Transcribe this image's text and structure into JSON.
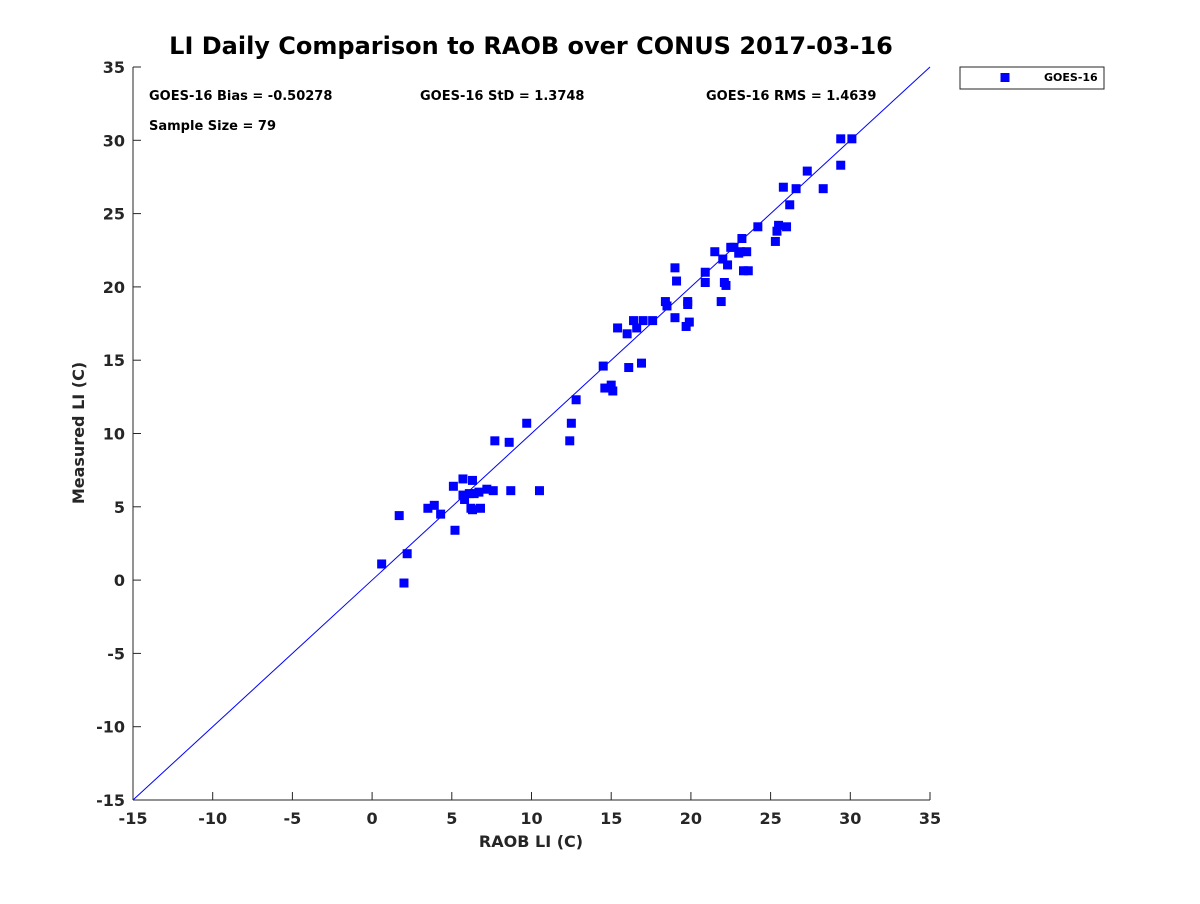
{
  "chart_data": {
    "type": "scatter",
    "title": "LI Daily Comparison to RAOB over CONUS 2017-03-16",
    "xlabel": "RAOB LI (C)",
    "ylabel": "Measured LI (C)",
    "xlim": [
      -15,
      35
    ],
    "ylim": [
      -15,
      35
    ],
    "xticks": [
      -15,
      -10,
      -5,
      0,
      5,
      10,
      15,
      20,
      25,
      30,
      35
    ],
    "yticks": [
      -15,
      -10,
      -5,
      0,
      5,
      10,
      15,
      20,
      25,
      30,
      35
    ],
    "grid": false,
    "legend_position": "top-right outside",
    "reference_line": "y = x",
    "colors": {
      "marker": "#0000ff",
      "line": "#0000ff"
    },
    "stats": {
      "bias": "GOES-16 Bias = -0.50278",
      "std": "GOES-16 StD = 1.3748",
      "rms": "GOES-16 RMS = 1.4639",
      "sample_size": "Sample Size = 79"
    },
    "series": [
      {
        "name": "GOES-16",
        "marker": "square",
        "x": [
          0.6,
          1.7,
          2.0,
          2.2,
          3.5,
          3.9,
          4.3,
          5.1,
          5.2,
          5.7,
          5.7,
          5.8,
          6.1,
          6.2,
          6.3,
          6.3,
          6.4,
          6.7,
          6.8,
          7.2,
          7.6,
          7.7,
          8.6,
          8.7,
          9.7,
          10.5,
          12.4,
          12.5,
          12.8,
          14.5,
          14.6,
          15.0,
          15.1,
          15.4,
          16.0,
          16.1,
          16.4,
          16.6,
          16.9,
          17.0,
          17.6,
          18.4,
          18.5,
          19.0,
          19.0,
          19.1,
          19.7,
          19.8,
          19.8,
          19.9,
          20.9,
          20.9,
          21.5,
          21.9,
          22.0,
          22.1,
          22.2,
          22.3,
          22.5,
          22.7,
          23.0,
          23.1,
          23.2,
          23.3,
          23.5,
          23.6,
          24.2,
          25.3,
          25.4,
          25.5,
          25.8,
          26.0,
          26.2,
          26.6,
          27.3,
          28.3,
          29.4,
          29.4,
          30.1
        ],
        "y": [
          1.1,
          4.4,
          -0.2,
          1.8,
          4.9,
          5.1,
          4.5,
          6.4,
          3.4,
          6.9,
          5.8,
          5.5,
          5.9,
          4.9,
          6.8,
          4.8,
          5.9,
          6.0,
          4.9,
          6.2,
          6.1,
          9.5,
          9.4,
          6.1,
          10.7,
          6.1,
          9.5,
          10.7,
          12.3,
          14.6,
          13.1,
          13.3,
          12.9,
          17.2,
          16.8,
          14.5,
          17.7,
          17.2,
          14.8,
          17.7,
          17.7,
          19.0,
          18.7,
          21.3,
          17.9,
          20.4,
          17.3,
          18.8,
          19.0,
          17.6,
          20.3,
          21.0,
          22.4,
          19.0,
          21.9,
          20.3,
          20.1,
          21.5,
          22.7,
          22.7,
          22.3,
          22.4,
          23.3,
          21.1,
          22.4,
          21.1,
          24.1,
          23.1,
          23.8,
          24.2,
          26.8,
          24.1,
          25.6,
          26.7,
          27.9,
          26.7,
          28.3,
          30.1,
          30.1
        ]
      }
    ]
  }
}
